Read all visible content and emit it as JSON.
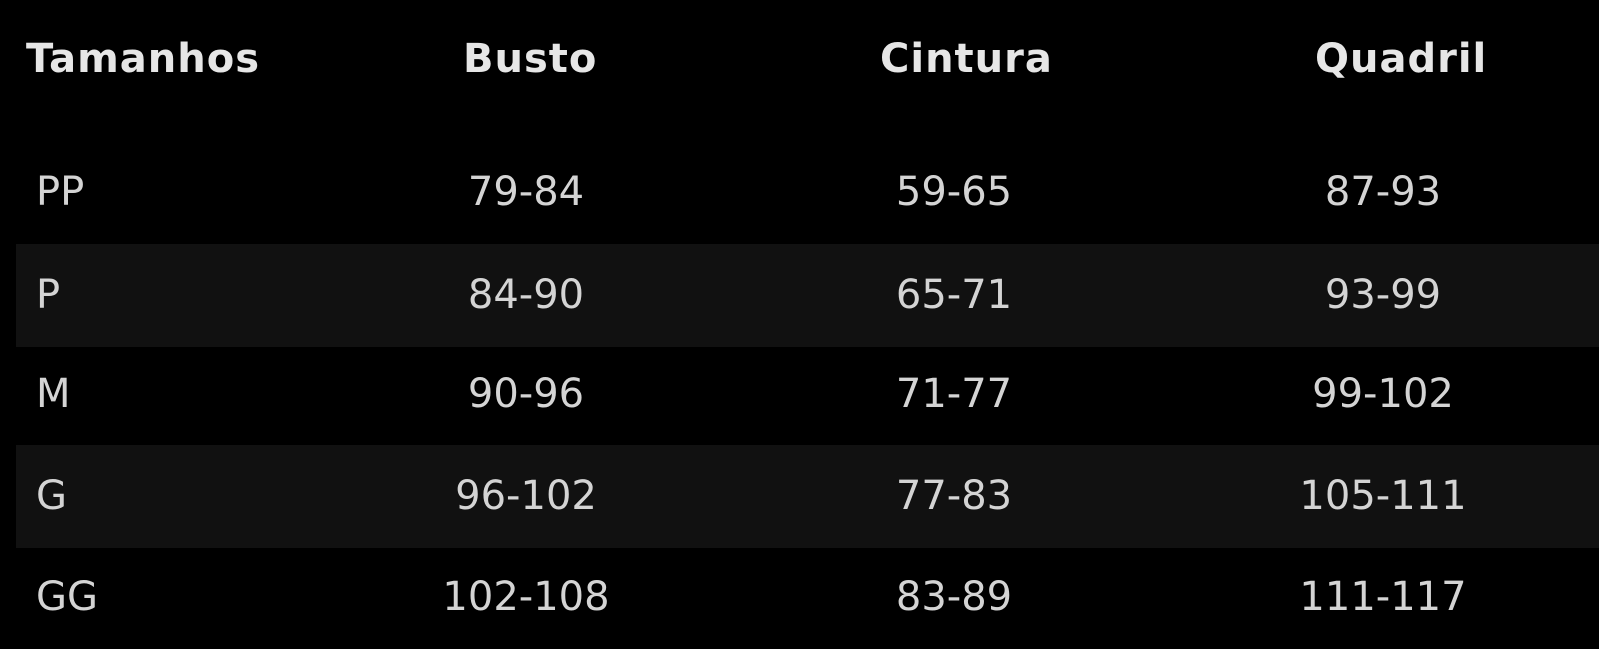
{
  "table": {
    "headers": {
      "size": "Tamanhos",
      "bust": "Busto",
      "waist": "Cintura",
      "hip": "Quadril"
    },
    "rows": [
      {
        "size": "PP",
        "bust": "79-84",
        "waist": "59-65",
        "hip": "87-93"
      },
      {
        "size": "P",
        "bust": "84-90",
        "waist": "65-71",
        "hip": "93-99"
      },
      {
        "size": "M",
        "bust": "90-96",
        "waist": "71-77",
        "hip": "99-102"
      },
      {
        "size": "G",
        "bust": "96-102",
        "waist": "77-83",
        "hip": "105-111"
      },
      {
        "size": "GG",
        "bust": "102-108",
        "waist": "83-89",
        "hip": "111-117"
      }
    ]
  },
  "colors": {
    "background": "#000000",
    "stripe": "#111111",
    "header_text": "#e6e6e6",
    "body_text": "#d4d4d4"
  }
}
